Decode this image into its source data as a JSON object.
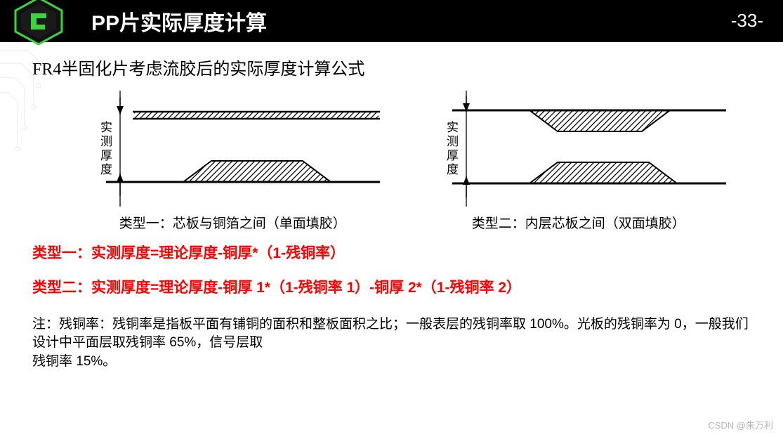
{
  "header": {
    "title": "PP片实际厚度计算",
    "page_number": "-33-",
    "bg_color": "#000000",
    "text_color": "#ffffff",
    "logo_accent": "#3fd23f",
    "logo_dark": "#1a1a1a"
  },
  "subtitle": "FR4半固化片考虑流胶后的实际厚度计算公式",
  "diagrams": {
    "left": {
      "caption": "类型一：芯板与铜箔之间（单面填胶）",
      "label": "实测厚度"
    },
    "right": {
      "caption": "类型二：内层芯板之间（双面填胶）",
      "label": "实测厚度"
    },
    "stroke_color": "#000000",
    "hatch_color": "#000000"
  },
  "formulas": {
    "color": "#ff0000",
    "type1": "类型一：实测厚度=理论厚度-铜厚*（1-残铜率）",
    "type2": "类型二：实测厚度=理论厚度-铜厚 1*（1-残铜率 1）-铜厚 2*（1-残铜率 2）"
  },
  "note": "注：残铜率：残铜率是指板平面有铺铜的面积和整板面积之比；一般表层的残铜率取 100%。光板的残铜率为 0，一般我们设计中平面层取残铜率 65%，信号层取\n残铜率 15%。",
  "watermark": "CSDN @朱万利",
  "circuit_deco_color": "#bdbdbd"
}
